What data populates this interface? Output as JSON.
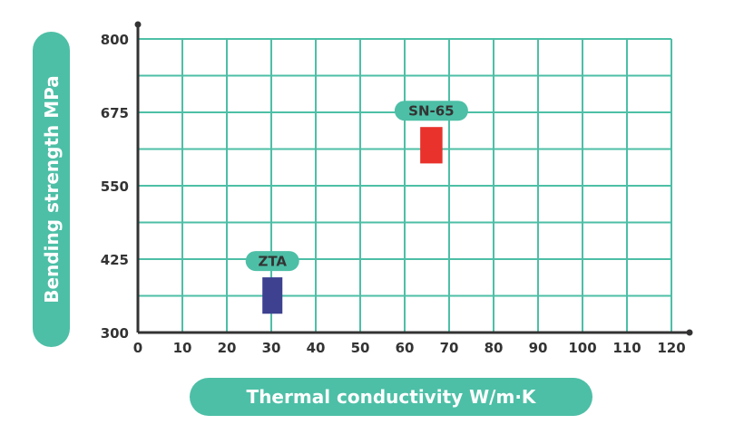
{
  "chart_data": {
    "type": "range-bar",
    "xlabel": "Thermal conductivity W/m·K",
    "ylabel": "Bending strength MPa",
    "xlim": [
      0,
      120
    ],
    "ylim": [
      300,
      800
    ],
    "x_ticks": [
      "0",
      "10",
      "20",
      "30",
      "40",
      "50",
      "60",
      "70",
      "80",
      "90",
      "100",
      "110",
      "120"
    ],
    "y_ticks": [
      "300",
      "425",
      "550",
      "675",
      "800"
    ],
    "grid": true,
    "series": [
      {
        "name": "ZTA",
        "x_range": [
          28,
          32.5
        ],
        "y_range": [
          332,
          394
        ],
        "color": "#3d4190"
      },
      {
        "name": "SN-65",
        "x_range": [
          63.5,
          68.5
        ],
        "y_range": [
          588,
          650
        ],
        "color": "#e8322b"
      }
    ],
    "colors": {
      "grid": "#4dbfa6",
      "axis": "#333333",
      "label_bg": "#4dbfa6"
    }
  }
}
